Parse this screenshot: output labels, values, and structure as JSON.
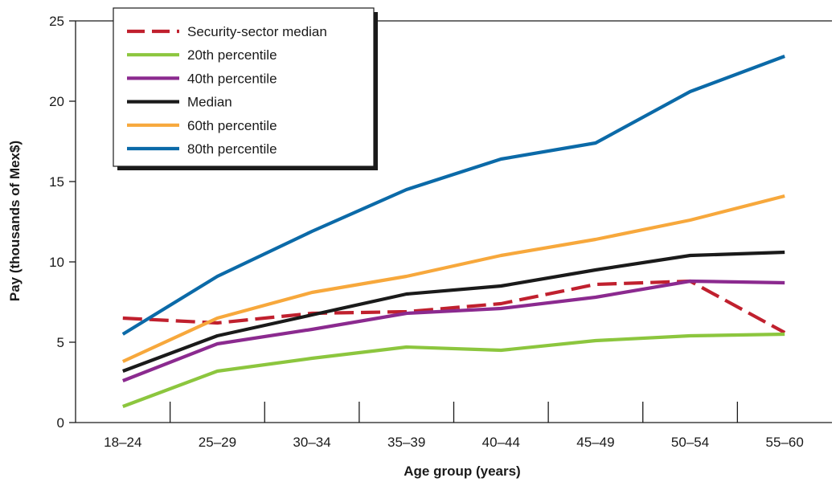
{
  "chart_data": {
    "type": "line",
    "title": "",
    "xlabel": "Age group (years)",
    "ylabel": "Pay (thousands of Mex$)",
    "categories": [
      "18–24",
      "25–29",
      "30–34",
      "35–39",
      "40–44",
      "45–49",
      "50–54",
      "55–60"
    ],
    "ylim": [
      0,
      25
    ],
    "yticks": [
      0,
      5,
      10,
      15,
      20,
      25
    ],
    "grid": false,
    "legend_position": "top-left",
    "series": [
      {
        "name": "Security-sector median",
        "color": "#c0202e",
        "dashed": true,
        "values": [
          6.5,
          6.2,
          6.8,
          6.9,
          7.4,
          8.6,
          8.8,
          5.6
        ]
      },
      {
        "name": "20th percentile",
        "color": "#8cc63e",
        "dashed": false,
        "values": [
          1.0,
          3.2,
          4.0,
          4.7,
          4.5,
          5.1,
          5.4,
          5.5
        ]
      },
      {
        "name": "40th percentile",
        "color": "#8b2a8f",
        "dashed": false,
        "values": [
          2.6,
          4.9,
          5.8,
          6.8,
          7.1,
          7.8,
          8.8,
          8.7
        ]
      },
      {
        "name": "Median",
        "color": "#1a1a1a",
        "dashed": false,
        "values": [
          3.2,
          5.4,
          6.7,
          8.0,
          8.5,
          9.5,
          10.4,
          10.6
        ]
      },
      {
        "name": "60th percentile",
        "color": "#f7a83c",
        "dashed": false,
        "values": [
          3.8,
          6.5,
          8.1,
          9.1,
          10.4,
          11.4,
          12.6,
          14.1
        ]
      },
      {
        "name": "80th percentile",
        "color": "#0b6aa8",
        "dashed": false,
        "values": [
          5.5,
          9.1,
          11.9,
          14.5,
          16.4,
          17.4,
          20.6,
          22.8
        ]
      }
    ]
  }
}
